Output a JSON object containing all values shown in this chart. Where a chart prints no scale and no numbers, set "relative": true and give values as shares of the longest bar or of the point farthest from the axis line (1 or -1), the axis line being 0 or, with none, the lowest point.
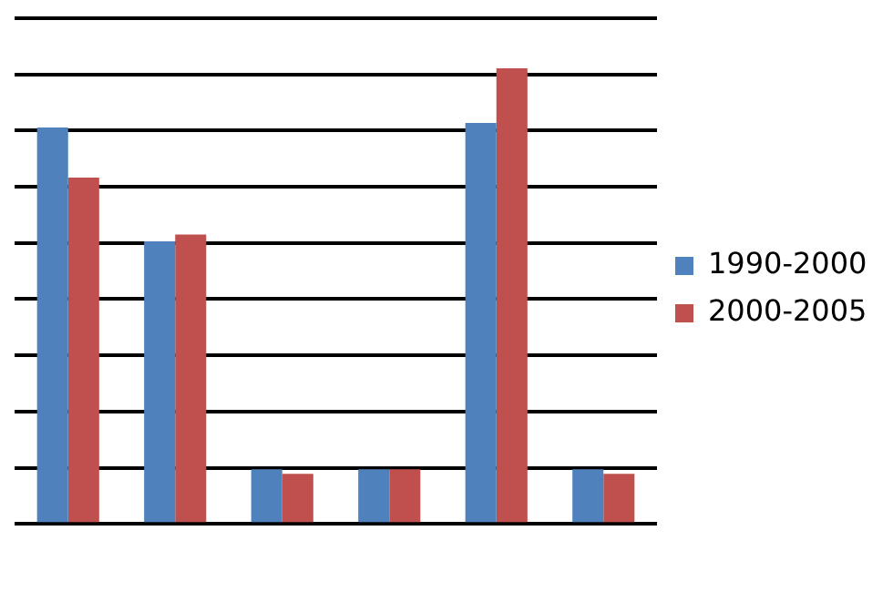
{
  "chart_data": {
    "type": "bar",
    "relative": true,
    "grid": "y",
    "legend": "right",
    "categories": [
      null,
      null,
      null,
      null,
      null,
      null
    ],
    "series": [
      {
        "name": "1990-2000",
        "color": "#4f81bd",
        "values": [
          0.87,
          0.62,
          0.12,
          0.12,
          0.88,
          0.12
        ]
      },
      {
        "name": "2000-2005",
        "color": "#c0504d",
        "values": [
          0.76,
          0.635,
          0.11,
          0.12,
          1,
          0.11
        ]
      }
    ]
  }
}
